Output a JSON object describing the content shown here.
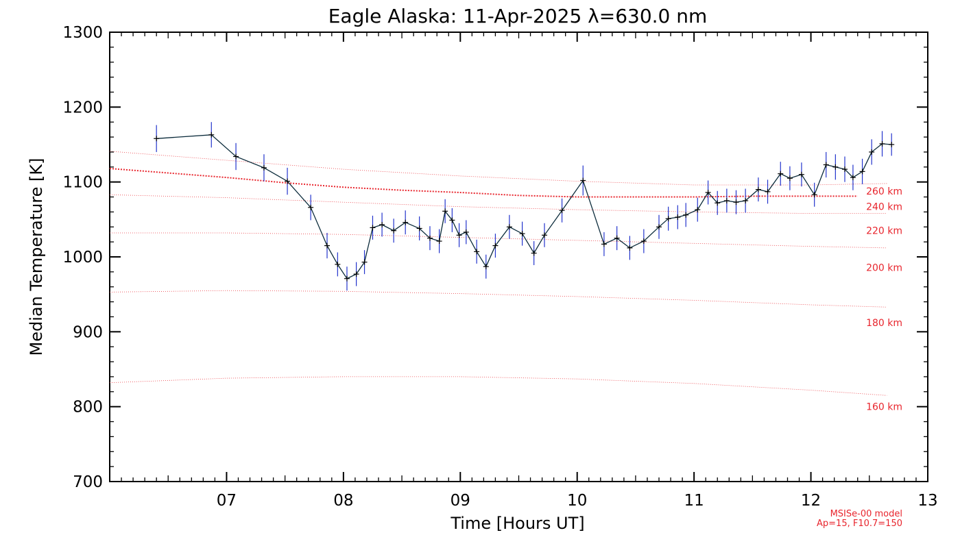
{
  "chart_data": {
    "type": "line",
    "title": "Eagle Alaska: 11-Apr-2025 λ=630.0 nm",
    "xlabel": "Time [Hours UT]",
    "ylabel": "Median Temperature [K]",
    "xlim": [
      6,
      13
    ],
    "ylim": [
      700,
      1300
    ],
    "x_ticks": [
      7,
      8,
      9,
      10,
      11,
      12,
      13
    ],
    "x_tick_labels": [
      "07",
      "08",
      "09",
      "10",
      "11",
      "12",
      "13"
    ],
    "y_ticks": [
      700,
      800,
      900,
      1000,
      1100,
      1200,
      1300
    ],
    "y_tick_labels": [
      "700",
      "800",
      "900",
      "1000",
      "1100",
      "1200",
      "1300"
    ],
    "grid": false,
    "series": [
      {
        "color": "#0a2a3a",
        "errorbar_color": "#2233cc",
        "x": [
          6.4,
          6.87,
          7.08,
          7.32,
          7.52,
          7.72,
          7.86,
          7.95,
          8.03,
          8.11,
          8.18,
          8.25,
          8.33,
          8.43,
          8.53,
          8.65,
          8.74,
          8.82,
          8.87,
          8.93,
          8.99,
          9.05,
          9.14,
          9.22,
          9.3,
          9.42,
          9.53,
          9.63,
          9.72,
          9.87,
          10.05,
          10.23,
          10.34,
          10.45,
          10.57,
          10.7,
          10.78,
          10.86,
          10.93,
          11.03,
          11.12,
          11.2,
          11.28,
          11.36,
          11.44,
          11.55,
          11.63,
          11.74,
          11.82,
          11.92,
          12.03,
          12.13,
          12.21,
          12.29,
          12.36,
          12.44,
          12.52,
          12.61,
          12.69
        ],
        "y": [
          1158,
          1163,
          1134,
          1119,
          1101,
          1066,
          1015,
          990,
          971,
          977,
          993,
          1039,
          1043,
          1035,
          1046,
          1038,
          1025,
          1021,
          1061,
          1049,
          1029,
          1033,
          1007,
          987,
          1015,
          1040,
          1031,
          1005,
          1029,
          1062,
          1102,
          1017,
          1025,
          1012,
          1021,
          1040,
          1051,
          1053,
          1056,
          1063,
          1086,
          1072,
          1075,
          1073,
          1075,
          1090,
          1087,
          1111,
          1105,
          1110,
          1083,
          1123,
          1120,
          1117,
          1106,
          1114,
          1140,
          1151,
          1150
        ],
        "yerr": [
          18,
          17,
          18,
          18,
          18,
          17,
          17,
          16,
          16,
          16,
          16,
          16,
          16,
          16,
          16,
          16,
          16,
          16,
          16,
          16,
          16,
          16,
          16,
          16,
          16,
          16,
          16,
          16,
          16,
          16,
          20,
          16,
          16,
          16,
          16,
          16,
          16,
          16,
          16,
          16,
          16,
          16,
          16,
          16,
          16,
          16,
          16,
          16,
          16,
          16,
          16,
          17,
          17,
          17,
          17,
          17,
          17,
          17,
          15
        ]
      }
    ],
    "model_curve": {
      "color": "#e8242c",
      "style": "dotted",
      "x": [
        6.0,
        6.5,
        7.0,
        7.5,
        8.0,
        8.5,
        9.0,
        9.5,
        10.0,
        10.5,
        11.0,
        11.5,
        12.0,
        12.4
      ],
      "y": [
        1118,
        1112,
        1106,
        1099,
        1093,
        1089,
        1086,
        1082,
        1080,
        1080,
        1080,
        1081,
        1081,
        1081
      ]
    },
    "altitude_curves": [
      {
        "label": "260 km",
        "x": [
          6.0,
          7.0,
          8.0,
          9.0,
          10.0,
          11.0,
          12.0,
          12.65
        ],
        "y": [
          1141,
          1129,
          1117,
          1108,
          1101,
          1096,
          1096,
          1098
        ]
      },
      {
        "label": "240 km",
        "x": [
          6.0,
          7.0,
          8.0,
          9.0,
          10.0,
          11.0,
          12.0,
          12.65
        ],
        "y": [
          1083,
          1079,
          1073,
          1067,
          1063,
          1060,
          1058,
          1058
        ]
      },
      {
        "label": "220 km",
        "x": [
          6.0,
          7.0,
          8.0,
          9.0,
          10.0,
          11.0,
          12.0,
          12.65
        ],
        "y": [
          1032,
          1032,
          1030,
          1026,
          1022,
          1018,
          1014,
          1012
        ]
      },
      {
        "label": "200 km",
        "x": [
          6.0,
          7.0,
          8.0,
          9.0,
          10.0,
          11.0,
          12.0,
          12.65
        ],
        "y": [
          953,
          955,
          954,
          951,
          947,
          942,
          936,
          933
        ]
      },
      {
        "label": "180 km",
        "x": [
          6.0,
          7.0,
          8.0,
          9.0,
          10.0,
          11.0,
          12.0,
          12.65
        ],
        "y": [
          832,
          838,
          840,
          840,
          837,
          831,
          822,
          815
        ]
      }
    ],
    "altitude_label_positions": [
      {
        "label": "260 km",
        "y": 1088
      },
      {
        "label": "240 km",
        "y": 1067
      },
      {
        "label": "220 km",
        "y": 1035
      },
      {
        "label": "200 km",
        "y": 986
      },
      {
        "label": "180 km",
        "y": 912
      },
      {
        "label": "160 km",
        "y": 800
      }
    ],
    "model_note": [
      "MSISe-00 model",
      "Ap=15, F10.7=150"
    ]
  }
}
